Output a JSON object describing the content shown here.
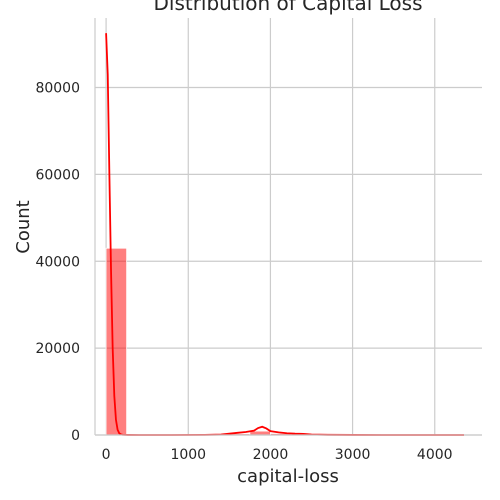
{
  "chart_data": {
    "type": "bar",
    "title": "Distribution of Capital Loss",
    "xlabel": "capital-loss",
    "ylabel": "Count",
    "xlim": [
      -135,
      4575
    ],
    "ylim": [
      0,
      96000
    ],
    "x_ticks": [
      0,
      1000,
      2000,
      3000,
      4000
    ],
    "y_ticks": [
      0,
      20000,
      40000,
      60000,
      80000
    ],
    "x_tick_labels": [
      "0",
      "1000",
      "2000",
      "3000",
      "4000"
    ],
    "y_tick_labels": [
      "0",
      "20000",
      "40000",
      "60000",
      "80000"
    ],
    "grid": true,
    "color": "#ff0000",
    "bars": [
      {
        "x0": 0,
        "x1": 250,
        "value": 43000
      },
      {
        "x0": 1500,
        "x1": 1750,
        "value": 300
      },
      {
        "x0": 1750,
        "x1": 2000,
        "value": 900
      },
      {
        "x0": 2000,
        "x1": 2250,
        "value": 350
      },
      {
        "x0": 2250,
        "x1": 2500,
        "value": 150
      }
    ],
    "kde": {
      "x": [
        0,
        20,
        40,
        60,
        80,
        100,
        120,
        140,
        160,
        180,
        200,
        230,
        270,
        400,
        800,
        1200,
        1400,
        1500,
        1600,
        1700,
        1800,
        1850,
        1900,
        1950,
        2000,
        2100,
        2200,
        2300,
        2400,
        2500,
        2700,
        3000,
        3500,
        4000,
        4356
      ],
      "y": [
        92500,
        83000,
        60000,
        38000,
        20000,
        9000,
        3500,
        1200,
        400,
        150,
        60,
        20,
        10,
        5,
        5,
        20,
        100,
        300,
        500,
        700,
        1000,
        1600,
        1900,
        1500,
        900,
        600,
        400,
        300,
        250,
        120,
        40,
        10,
        5,
        3,
        0
      ]
    }
  }
}
